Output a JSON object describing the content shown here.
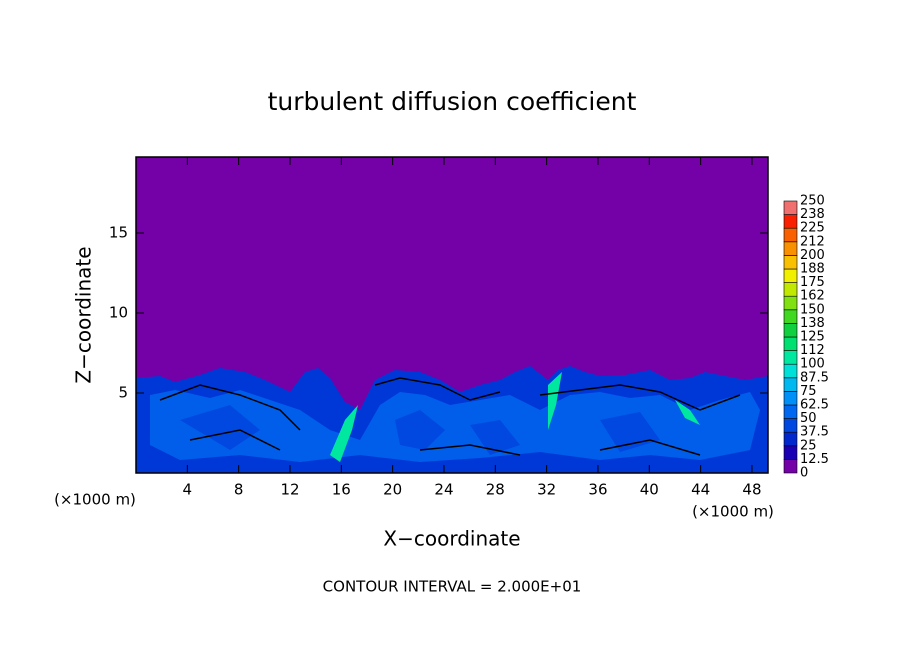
{
  "chart_data": {
    "type": "contour",
    "title": "turbulent diffusion coefficient",
    "x_label": "X−coordinate",
    "y_label": "Z−coordinate",
    "x_unit_left": "(×1000 m)",
    "x_unit_right": "(×1000 m)",
    "note": "CONTOUR INTERVAL = 2.000E+01",
    "xlim": [
      0,
      49.25
    ],
    "ylim": [
      0,
      19.75
    ],
    "xticks": [
      4,
      8,
      12,
      16,
      20,
      24,
      28,
      32,
      36,
      40,
      44,
      48
    ],
    "yticks": [
      5,
      10,
      15
    ],
    "colorbar": {
      "ticks": [
        0,
        12.5,
        25,
        37.5,
        50,
        62.5,
        75,
        87.5,
        100,
        {
          "value": 112.5,
          "label": "112"
        },
        125,
        {
          "value": 137.5,
          "label": "138"
        },
        150,
        {
          "value": 162.5,
          "label": "162"
        },
        175,
        {
          "value": 187.5,
          "label": "188"
        },
        200,
        {
          "value": 212.5,
          "label": "212"
        },
        225,
        {
          "value": 237.5,
          "label": "238"
        },
        250
      ],
      "colors": [
        "#7400a8",
        "#1a00b4",
        "#0028cc",
        "#0048e0",
        "#0068f0",
        "#0090f8",
        "#00b8f0",
        "#00e0d8",
        "#00e8a0",
        "#00e070",
        "#10d040",
        "#40d820",
        "#80e010",
        "#c0e800",
        "#f0f000",
        "#f8c000",
        "#f89000",
        "#f86000",
        "#f82000",
        "#f07070"
      ]
    }
  }
}
